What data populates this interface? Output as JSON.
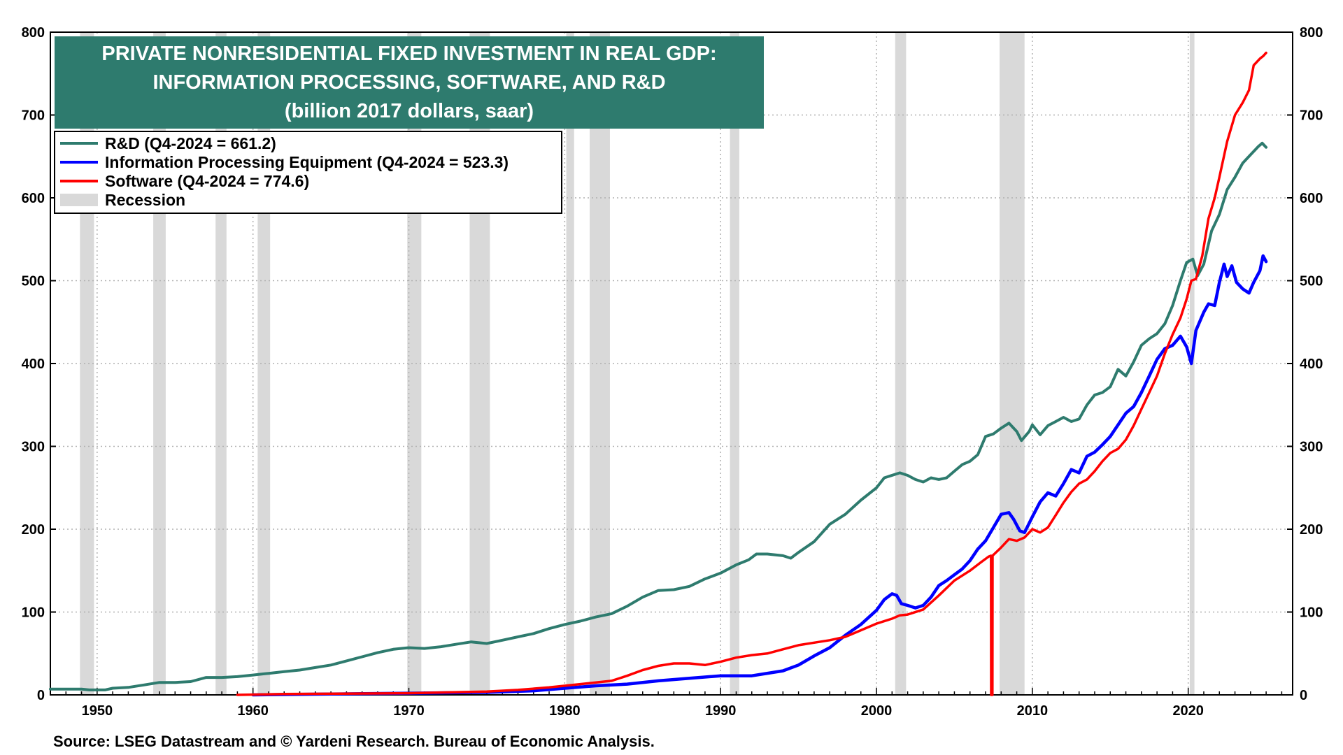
{
  "chart_data": {
    "type": "line",
    "title_lines": [
      "PRIVATE NONRESIDENTIAL FIXED INVESTMENT IN REAL GDP:",
      "INFORMATION  PROCESSING, SOFTWARE, AND R&D",
      "(billion 2017 dollars, saar)"
    ],
    "source": "Source: LSEG Datastream and © Yardeni Research. Bureau of Economic Analysis.",
    "xlim": [
      1947,
      2026.7
    ],
    "ylim": [
      0,
      800
    ],
    "x_ticks": [
      1950,
      1960,
      1970,
      1980,
      1990,
      2000,
      2010,
      2020
    ],
    "y_ticks": [
      0,
      100,
      200,
      300,
      400,
      500,
      600,
      700,
      800
    ],
    "grid": true,
    "legend_position": "top-left",
    "colors": {
      "title_bg": "#2e7b6e",
      "rd": "#2e7b6e",
      "info": "#0000ff",
      "software": "#ff0000",
      "recession": "#d9d9d9",
      "grid": "#b0b0b0"
    },
    "legend": [
      {
        "key": "rd",
        "label": "R&D  (Q4-2024 = 661.2)"
      },
      {
        "key": "info",
        "label": "Information Processing  Equipment (Q4-2024 = 523.3)"
      },
      {
        "key": "software",
        "label": "Software (Q4-2024 = 774.6)"
      },
      {
        "key": "recession",
        "label": "Recession"
      }
    ],
    "recessions": [
      [
        1948.9,
        1949.8
      ],
      [
        1953.6,
        1954.4
      ],
      [
        1957.6,
        1958.3
      ],
      [
        1960.3,
        1961.1
      ],
      [
        1969.9,
        1970.8
      ],
      [
        1973.9,
        1975.2
      ],
      [
        1980.1,
        1980.6
      ],
      [
        1981.6,
        1982.9
      ],
      [
        1990.6,
        1991.2
      ],
      [
        2001.2,
        2001.9
      ],
      [
        2007.9,
        2009.5
      ],
      [
        2020.1,
        2020.4
      ]
    ],
    "series": [
      {
        "key": "rd",
        "name": "R&D",
        "points": [
          [
            1947.0,
            7
          ],
          [
            1948.0,
            7
          ],
          [
            1949.0,
            7
          ],
          [
            1949.5,
            6
          ],
          [
            1950.5,
            6
          ],
          [
            1951.0,
            8
          ],
          [
            1952.0,
            9
          ],
          [
            1953.0,
            12
          ],
          [
            1954.0,
            15
          ],
          [
            1955.0,
            15
          ],
          [
            1956.0,
            16
          ],
          [
            1957.0,
            21
          ],
          [
            1958.0,
            21
          ],
          [
            1959.0,
            22
          ],
          [
            1960.0,
            24
          ],
          [
            1961.0,
            26
          ],
          [
            1962.0,
            28
          ],
          [
            1963.0,
            30
          ],
          [
            1964.0,
            33
          ],
          [
            1965.0,
            36
          ],
          [
            1966.0,
            41
          ],
          [
            1967.0,
            46
          ],
          [
            1968.0,
            51
          ],
          [
            1969.0,
            55
          ],
          [
            1970.0,
            57
          ],
          [
            1971.0,
            56
          ],
          [
            1972.0,
            58
          ],
          [
            1973.0,
            61
          ],
          [
            1974.0,
            64
          ],
          [
            1975.0,
            62
          ],
          [
            1976.0,
            66
          ],
          [
            1977.0,
            70
          ],
          [
            1978.0,
            74
          ],
          [
            1979.0,
            80
          ],
          [
            1980.0,
            85
          ],
          [
            1981.0,
            89
          ],
          [
            1982.0,
            94
          ],
          [
            1983.0,
            98
          ],
          [
            1984.0,
            107
          ],
          [
            1985.0,
            118
          ],
          [
            1986.0,
            126
          ],
          [
            1987.0,
            127
          ],
          [
            1988.0,
            131
          ],
          [
            1989.0,
            140
          ],
          [
            1990.0,
            147
          ],
          [
            1991.0,
            157
          ],
          [
            1991.8,
            163
          ],
          [
            1992.3,
            170
          ],
          [
            1993.0,
            170
          ],
          [
            1994.0,
            168
          ],
          [
            1994.5,
            165
          ],
          [
            1995.0,
            172
          ],
          [
            1996.0,
            185
          ],
          [
            1997.0,
            206
          ],
          [
            1998.0,
            218
          ],
          [
            1999.0,
            235
          ],
          [
            2000.0,
            250
          ],
          [
            2000.5,
            262
          ],
          [
            2001.5,
            268
          ],
          [
            2002.0,
            265
          ],
          [
            2002.5,
            260
          ],
          [
            2003.0,
            257
          ],
          [
            2003.5,
            262
          ],
          [
            2004.0,
            260
          ],
          [
            2004.5,
            262
          ],
          [
            2005.0,
            270
          ],
          [
            2005.5,
            278
          ],
          [
            2006.0,
            282
          ],
          [
            2006.5,
            290
          ],
          [
            2007.0,
            312
          ],
          [
            2007.5,
            315
          ],
          [
            2008.0,
            322
          ],
          [
            2008.5,
            328
          ],
          [
            2009.0,
            318
          ],
          [
            2009.3,
            307
          ],
          [
            2009.8,
            318
          ],
          [
            2010.0,
            326
          ],
          [
            2010.5,
            314
          ],
          [
            2011.0,
            325
          ],
          [
            2011.5,
            330
          ],
          [
            2012.0,
            335
          ],
          [
            2012.5,
            330
          ],
          [
            2013.0,
            333
          ],
          [
            2013.5,
            350
          ],
          [
            2014.0,
            362
          ],
          [
            2014.5,
            365
          ],
          [
            2015.0,
            372
          ],
          [
            2015.5,
            393
          ],
          [
            2016.0,
            385
          ],
          [
            2016.5,
            402
          ],
          [
            2017.0,
            422
          ],
          [
            2017.5,
            430
          ],
          [
            2018.0,
            436
          ],
          [
            2018.5,
            448
          ],
          [
            2019.0,
            470
          ],
          [
            2019.5,
            500
          ],
          [
            2019.9,
            522
          ],
          [
            2020.3,
            526
          ],
          [
            2020.6,
            506
          ],
          [
            2021.0,
            520
          ],
          [
            2021.5,
            560
          ],
          [
            2022.0,
            580
          ],
          [
            2022.5,
            610
          ],
          [
            2023.0,
            625
          ],
          [
            2023.5,
            642
          ],
          [
            2024.0,
            652
          ],
          [
            2024.5,
            662
          ],
          [
            2024.75,
            666
          ],
          [
            2025.0,
            661
          ]
        ]
      },
      {
        "key": "info",
        "name": "Information Processing Equipment",
        "points": [
          [
            1960.0,
            0
          ],
          [
            1965.0,
            1
          ],
          [
            1970.0,
            2
          ],
          [
            1975.0,
            3
          ],
          [
            1978.0,
            5
          ],
          [
            1980.0,
            8
          ],
          [
            1982.0,
            11
          ],
          [
            1984.0,
            13
          ],
          [
            1986.0,
            17
          ],
          [
            1988.0,
            20
          ],
          [
            1990.0,
            23
          ],
          [
            1992.0,
            23
          ],
          [
            1994.0,
            29
          ],
          [
            1995.0,
            36
          ],
          [
            1996.0,
            47
          ],
          [
            1997.0,
            57
          ],
          [
            1998.0,
            72
          ],
          [
            1999.0,
            85
          ],
          [
            2000.0,
            102
          ],
          [
            2000.5,
            115
          ],
          [
            2001.0,
            122
          ],
          [
            2001.3,
            120
          ],
          [
            2001.6,
            110
          ],
          [
            2002.0,
            108
          ],
          [
            2002.5,
            105
          ],
          [
            2003.0,
            108
          ],
          [
            2003.5,
            118
          ],
          [
            2004.0,
            132
          ],
          [
            2004.5,
            138
          ],
          [
            2005.0,
            145
          ],
          [
            2005.5,
            152
          ],
          [
            2006.0,
            162
          ],
          [
            2006.5,
            176
          ],
          [
            2007.0,
            186
          ],
          [
            2007.5,
            202
          ],
          [
            2008.0,
            218
          ],
          [
            2008.5,
            220
          ],
          [
            2008.8,
            212
          ],
          [
            2009.2,
            198
          ],
          [
            2009.5,
            196
          ],
          [
            2010.0,
            215
          ],
          [
            2010.5,
            233
          ],
          [
            2011.0,
            244
          ],
          [
            2011.5,
            240
          ],
          [
            2012.0,
            255
          ],
          [
            2012.5,
            272
          ],
          [
            2013.0,
            268
          ],
          [
            2013.5,
            288
          ],
          [
            2014.0,
            293
          ],
          [
            2014.5,
            302
          ],
          [
            2015.0,
            312
          ],
          [
            2015.5,
            326
          ],
          [
            2016.0,
            340
          ],
          [
            2016.5,
            348
          ],
          [
            2017.0,
            365
          ],
          [
            2017.5,
            385
          ],
          [
            2018.0,
            405
          ],
          [
            2018.5,
            418
          ],
          [
            2019.0,
            422
          ],
          [
            2019.5,
            433
          ],
          [
            2019.9,
            420
          ],
          [
            2020.2,
            400
          ],
          [
            2020.5,
            440
          ],
          [
            2021.0,
            462
          ],
          [
            2021.3,
            472
          ],
          [
            2021.7,
            470
          ],
          [
            2022.0,
            498
          ],
          [
            2022.3,
            520
          ],
          [
            2022.5,
            505
          ],
          [
            2022.8,
            518
          ],
          [
            2023.1,
            498
          ],
          [
            2023.5,
            490
          ],
          [
            2023.9,
            485
          ],
          [
            2024.2,
            498
          ],
          [
            2024.6,
            512
          ],
          [
            2024.8,
            530
          ],
          [
            2025.0,
            523
          ]
        ]
      },
      {
        "key": "software",
        "name": "Software",
        "points": [
          [
            1959.0,
            0
          ],
          [
            1962.0,
            1
          ],
          [
            1970.0,
            2
          ],
          [
            1975.0,
            4
          ],
          [
            1977.0,
            6
          ],
          [
            1979.0,
            9
          ],
          [
            1981.0,
            13
          ],
          [
            1982.0,
            15
          ],
          [
            1983.0,
            17
          ],
          [
            1984.0,
            23
          ],
          [
            1985.0,
            30
          ],
          [
            1986.0,
            35
          ],
          [
            1987.0,
            38
          ],
          [
            1988.0,
            38
          ],
          [
            1989.0,
            36
          ],
          [
            1990.0,
            40
          ],
          [
            1991.0,
            45
          ],
          [
            1992.0,
            48
          ],
          [
            1993.0,
            50
          ],
          [
            1994.0,
            55
          ],
          [
            1995.0,
            60
          ],
          [
            1996.0,
            63
          ],
          [
            1997.0,
            66
          ],
          [
            1998.0,
            70
          ],
          [
            1999.0,
            78
          ],
          [
            2000.0,
            86
          ],
          [
            2001.0,
            92
          ],
          [
            2001.5,
            96
          ],
          [
            2002.0,
            97
          ],
          [
            2003.0,
            103
          ],
          [
            2004.0,
            120
          ],
          [
            2005.0,
            138
          ],
          [
            2006.0,
            150
          ],
          [
            2006.7,
            160
          ],
          [
            2007.2,
            167
          ],
          [
            2007.35,
            168
          ],
          [
            2007.36,
            0
          ],
          [
            2007.44,
            0
          ],
          [
            2007.45,
            168
          ],
          [
            2008.0,
            178
          ],
          [
            2008.5,
            188
          ],
          [
            2009.0,
            186
          ],
          [
            2009.5,
            190
          ],
          [
            2010.0,
            200
          ],
          [
            2010.5,
            196
          ],
          [
            2011.0,
            202
          ],
          [
            2011.5,
            217
          ],
          [
            2012.0,
            232
          ],
          [
            2012.5,
            245
          ],
          [
            2013.0,
            255
          ],
          [
            2013.5,
            260
          ],
          [
            2014.0,
            270
          ],
          [
            2014.5,
            282
          ],
          [
            2015.0,
            292
          ],
          [
            2015.5,
            297
          ],
          [
            2016.0,
            308
          ],
          [
            2016.5,
            325
          ],
          [
            2017.0,
            345
          ],
          [
            2017.5,
            365
          ],
          [
            2018.0,
            385
          ],
          [
            2018.5,
            412
          ],
          [
            2019.0,
            435
          ],
          [
            2019.5,
            455
          ],
          [
            2019.9,
            478
          ],
          [
            2020.2,
            500
          ],
          [
            2020.5,
            502
          ],
          [
            2020.9,
            530
          ],
          [
            2021.3,
            575
          ],
          [
            2021.7,
            600
          ],
          [
            2022.0,
            625
          ],
          [
            2022.5,
            668
          ],
          [
            2023.0,
            700
          ],
          [
            2023.5,
            715
          ],
          [
            2023.9,
            730
          ],
          [
            2024.2,
            760
          ],
          [
            2024.6,
            768
          ],
          [
            2024.8,
            771
          ],
          [
            2025.0,
            775
          ]
        ]
      }
    ]
  }
}
